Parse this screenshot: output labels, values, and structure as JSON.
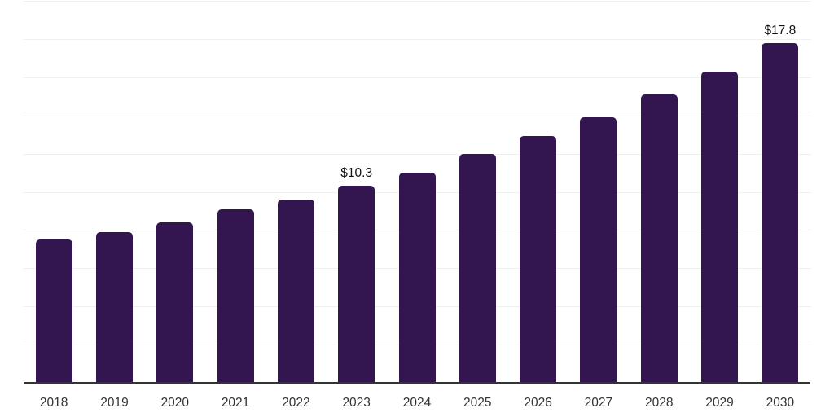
{
  "chart_data": {
    "type": "bar",
    "categories": [
      "2018",
      "2019",
      "2020",
      "2021",
      "2022",
      "2023",
      "2024",
      "2025",
      "2026",
      "2027",
      "2028",
      "2029",
      "2030"
    ],
    "values": [
      7.5,
      7.9,
      8.4,
      9.1,
      9.6,
      10.3,
      11.0,
      12.0,
      12.9,
      13.9,
      15.1,
      16.3,
      17.8
    ],
    "data_labels": [
      "",
      "",
      "",
      "",
      "",
      "$10.3",
      "",
      "",
      "",
      "",
      "",
      "",
      "$17.8"
    ],
    "title": "",
    "xlabel": "",
    "ylabel": "",
    "ylim": [
      0,
      20
    ],
    "gridline_step": 2,
    "grid": "horizontal-only",
    "legend_position": "none",
    "y_axis_tick_labels_visible": false,
    "colors": {
      "bar_fill": "#33154F",
      "axis_line": "#333333",
      "gridline": "#f0f0f0",
      "tick_label": "#333333",
      "data_label": "#111111",
      "background": "#ffffff"
    }
  }
}
